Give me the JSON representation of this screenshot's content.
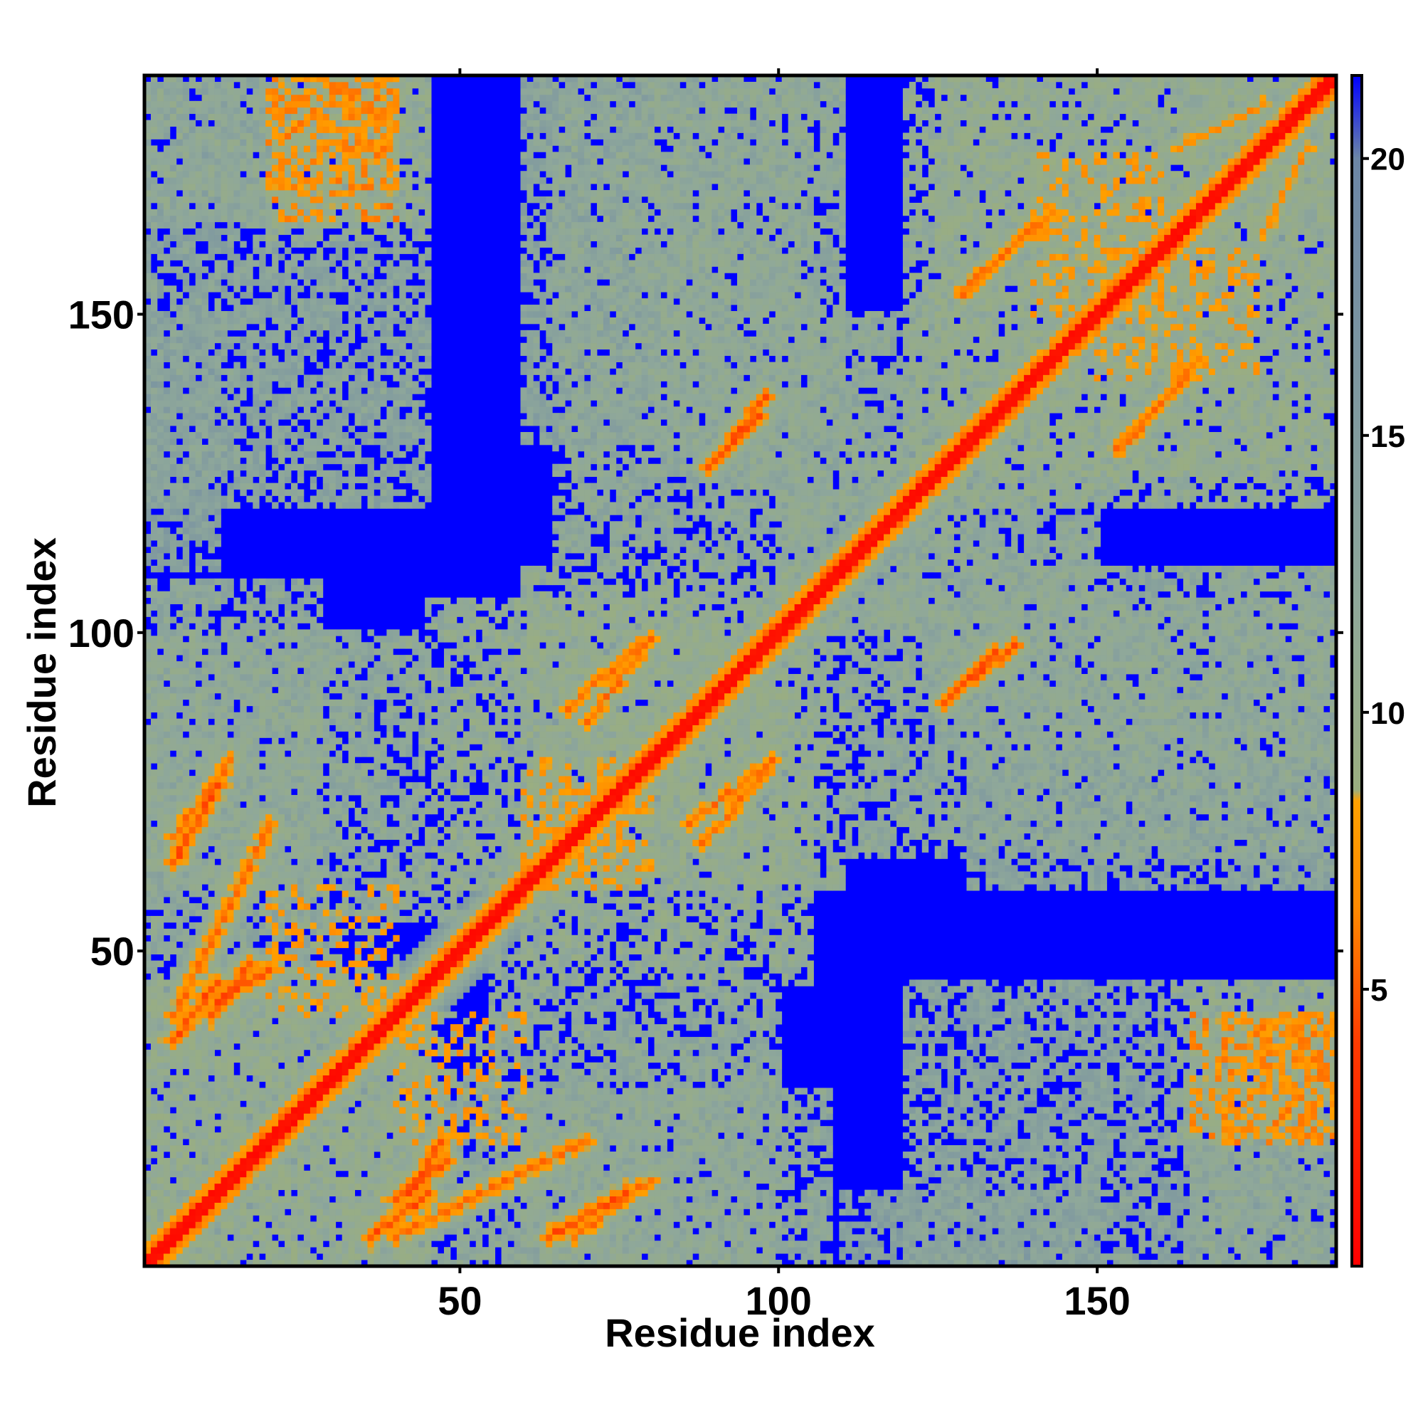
{
  "chart_data": {
    "type": "heatmap",
    "title": "",
    "xlabel": "Residue index",
    "ylabel": "Residue index",
    "xlim": [
      1,
      187
    ],
    "ylim": [
      1,
      187
    ],
    "x_ticks": [
      50,
      100,
      150
    ],
    "y_ticks": [
      50,
      100,
      150
    ],
    "n_residues": 187,
    "grid": false,
    "legend": "colorbar-right",
    "colorbar": {
      "range": [
        0,
        21.5
      ],
      "ticks": [
        5,
        10,
        15,
        20
      ],
      "colors": [
        "#ff0000",
        "#ff3a00",
        "#ff8a00",
        "#ffa000",
        "#9aae80",
        "#8fa89a",
        "#6c86a6",
        "#0000ff"
      ],
      "stops": [
        0,
        4,
        6.5,
        8.4,
        8.6,
        12,
        20,
        21.5
      ]
    },
    "color_scale": {
      "near": "#ff0000",
      "mid": "#ffa500",
      "far": "#9db080",
      "background": "#0000ff"
    },
    "diagonal_band": {
      "from": 1,
      "to": 187,
      "value": 0
    },
    "contact_segments": [
      {
        "x": [
          5,
          20
        ],
        "y": [
          40,
          70
        ],
        "value": 5,
        "comment": ""
      },
      {
        "x": [
          11,
          17
        ],
        "y": [
          40,
          48
        ],
        "value": 4
      },
      {
        "x": [
          5,
          14
        ],
        "y": [
          68,
          80
        ],
        "value": 5
      },
      {
        "x": [
          36,
          45
        ],
        "y": [
          5,
          12
        ],
        "value": 4
      },
      {
        "x": [
          42,
          47
        ],
        "y": [
          12,
          20
        ],
        "value": 4
      },
      {
        "x": [
          64,
          76
        ],
        "y": [
          5,
          12
        ],
        "value": 4
      },
      {
        "x": [
          67,
          78
        ],
        "y": [
          88,
          98
        ],
        "value": 5
      },
      {
        "x": [
          86,
          99
        ],
        "y": [
          70,
          80
        ],
        "value": 5
      },
      {
        "x": [
          89,
          97
        ],
        "y": [
          126,
          134
        ],
        "value": 4
      },
      {
        "x": [
          128,
          137
        ],
        "y": [
          91,
          98
        ],
        "value": 4
      },
      {
        "x": [
          129,
          143
        ],
        "y": [
          154,
          166
        ],
        "value": 5
      },
      {
        "x": [
          153,
          164
        ],
        "y": [
          129,
          140
        ],
        "value": 5
      },
      {
        "x": [
          176,
          183
        ],
        "y": [
          163,
          176
        ],
        "value": 6
      },
      {
        "x": [
          110,
          117
        ],
        "y": [
          108,
          117
        ],
        "value": 5
      }
    ],
    "contact_regions": [
      {
        "x": [
          1,
          45
        ],
        "y": [
          1,
          45
        ],
        "value": 11
      },
      {
        "x": [
          1,
          28
        ],
        "y": [
          60,
          108
        ],
        "value": 12
      },
      {
        "x": [
          1,
          45
        ],
        "y": [
          120,
          187
        ],
        "value": 13
      },
      {
        "x": [
          20,
          45
        ],
        "y": [
          162,
          187
        ],
        "value": 11
      },
      {
        "x": [
          40,
          70
        ],
        "y": [
          1,
          30
        ],
        "value": 12
      },
      {
        "x": [
          55,
          100
        ],
        "y": [
          1,
          50
        ],
        "value": 12
      },
      {
        "x": [
          60,
          105
        ],
        "y": [
          45,
          110
        ],
        "value": 11
      },
      {
        "x": [
          65,
          105
        ],
        "y": [
          100,
          187
        ],
        "value": 12
      },
      {
        "x": [
          90,
          130
        ],
        "y": [
          100,
          150
        ],
        "value": 12
      },
      {
        "x": [
          125,
          187
        ],
        "y": [
          80,
          110
        ],
        "value": 12
      },
      {
        "x": [
          125,
          187
        ],
        "y": [
          120,
          187
        ],
        "value": 11
      },
      {
        "x": [
          165,
          187
        ],
        "y": [
          1,
          45
        ],
        "value": 12
      },
      {
        "x": [
          110,
          150
        ],
        "y": [
          1,
          12
        ],
        "value": 14
      },
      {
        "x": [
          130,
          187
        ],
        "y": [
          60,
          85
        ],
        "value": 13
      }
    ],
    "dense_clusters": [
      {
        "x": [
          20,
          40
        ],
        "y": [
          165,
          187
        ],
        "value": 8
      },
      {
        "x": [
          170,
          185
        ],
        "y": [
          20,
          40
        ],
        "value": 8
      },
      {
        "x": [
          20,
          40
        ],
        "y": [
          40,
          60
        ],
        "value": 9
      },
      {
        "x": [
          60,
          80
        ],
        "y": [
          60,
          75
        ],
        "value": 9
      },
      {
        "x": [
          140,
          160
        ],
        "y": [
          150,
          175
        ],
        "value": 9
      }
    ]
  }
}
